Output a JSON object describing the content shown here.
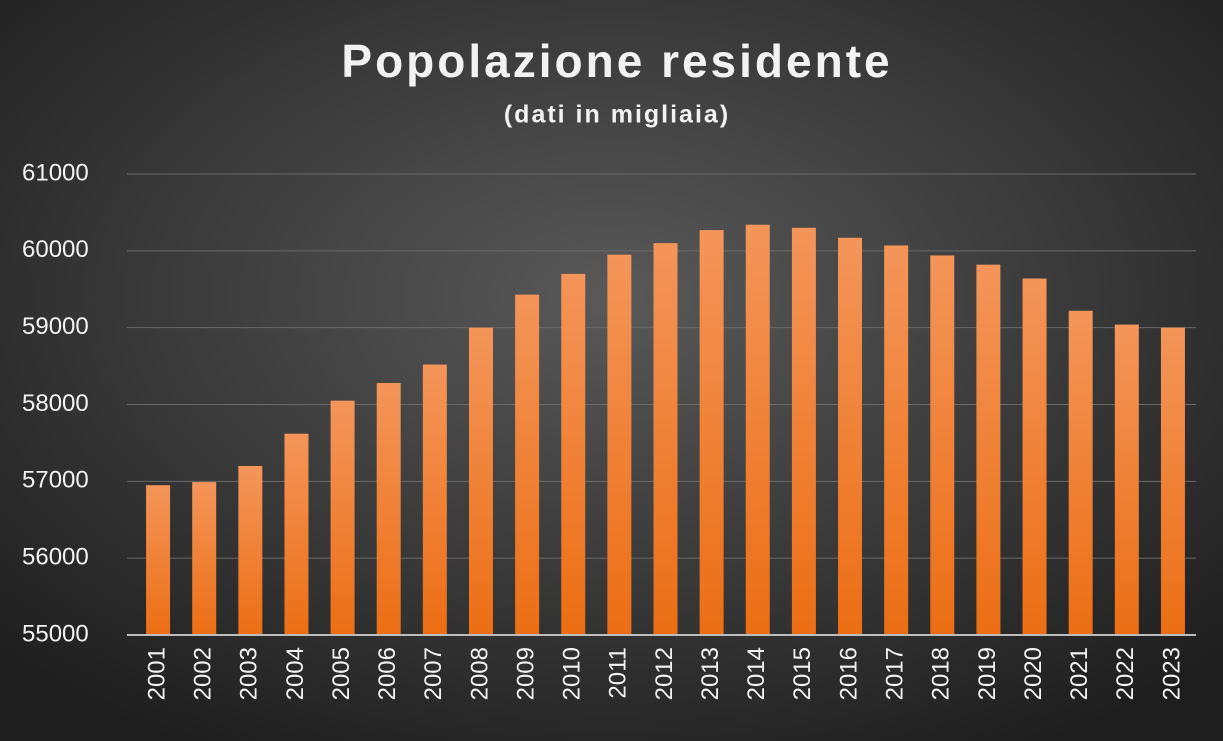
{
  "chart_data": {
    "type": "bar",
    "title": "Popolazione residente",
    "subtitle": "(dati in migliaia)",
    "categories": [
      "2001",
      "2002",
      "2003",
      "2004",
      "2005",
      "2006",
      "2007",
      "2008",
      "2009",
      "2010",
      "2011",
      "2012",
      "2013",
      "2014",
      "2015",
      "2016",
      "2017",
      "2018",
      "2019",
      "2020",
      "2021",
      "2022",
      "2023"
    ],
    "values": [
      56950,
      56990,
      57200,
      57620,
      58050,
      58280,
      58520,
      59000,
      59430,
      59700,
      59950,
      60100,
      60270,
      60340,
      60300,
      60170,
      60070,
      59940,
      59820,
      59640,
      59220,
      59040,
      59000
    ],
    "color": "#f07a28",
    "ylim": [
      55000,
      61000
    ],
    "yticks": [
      55000,
      56000,
      57000,
      58000,
      59000,
      60000,
      61000
    ],
    "grid": true
  }
}
